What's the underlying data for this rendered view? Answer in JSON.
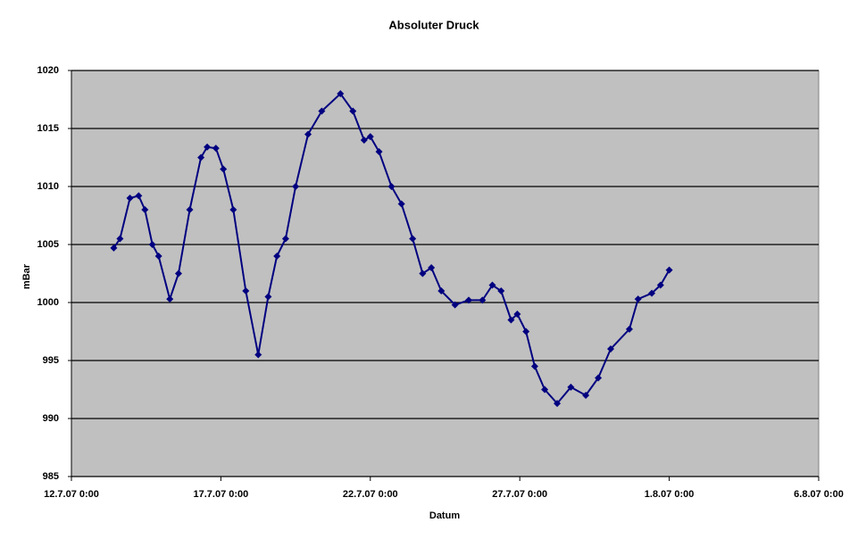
{
  "chart_data": {
    "type": "line",
    "title": "Absoluter Druck",
    "x_label": "Datum",
    "y_label": "mBar",
    "x": [
      "13.7.07 10:00",
      "13.7.07 15:00",
      "13.7.07 23:00",
      "14.7.07 6:00",
      "14.7.07 11:00",
      "14.7.07 17:00",
      "14.7.07 22:00",
      "15.7.07 7:00",
      "15.7.07 14:00",
      "15.7.07 23:00",
      "16.7.07 8:00",
      "16.7.07 13:00",
      "16.7.07 20:00",
      "17.7.07 2:00",
      "17.7.07 10:00",
      "17.7.07 20:00",
      "18.7.07 6:00",
      "18.7.07 14:00",
      "18.7.07 21:00",
      "19.7.07 4:00",
      "19.7.07 12:00",
      "19.7.07 22:00",
      "20.7.07 9:00",
      "21.7.07 0:00",
      "21.7.07 10:00",
      "21.7.07 19:00",
      "22.7.07 0:00",
      "22.7.07 7:00",
      "22.7.07 17:00",
      "23.7.07 1:00",
      "23.7.07 10:00",
      "23.7.07 18:00",
      "24.7.07 1:00",
      "24.7.07 9:00",
      "24.7.07 20:00",
      "25.7.07 7:00",
      "25.7.07 18:00",
      "26.7.07 2:00",
      "26.7.07 9:00",
      "26.7.07 17:00",
      "26.7.07 22:00",
      "27.7.07 5:00",
      "27.7.07 12:00",
      "27.7.07 20:00",
      "28.7.07 6:00",
      "28.7.07 17:00",
      "29.7.07 5:00",
      "29.7.07 15:00",
      "30.7.07 1:00",
      "30.7.07 16:00",
      "30.7.07 23:00",
      "31.7.07 10:00",
      "31.7.07 17:00",
      "1.8.07 0:00"
    ],
    "series": [
      {
        "name": "Absoluter Druck",
        "color": "#000080",
        "values": [
          1004.7,
          1005.5,
          1009,
          1009.2,
          1008,
          1005,
          1004,
          1000.3,
          1002.5,
          1008,
          1012.5,
          1013.4,
          1013.3,
          1011.5,
          1008,
          1001,
          995.5,
          1000.5,
          1004,
          1005.5,
          1010,
          1014.5,
          1016.5,
          1018,
          1016.5,
          1014,
          1014.3,
          1013,
          1010,
          1008.5,
          1005.5,
          1002.5,
          1003,
          1001,
          999.8,
          1000.2,
          1000.2,
          1001.5,
          1001,
          998.5,
          999,
          997.5,
          994.5,
          992.5,
          991.3,
          992.7,
          992,
          993.5,
          996,
          997.7,
          1000.3,
          1000.8,
          1001.5,
          1002.8
        ]
      }
    ],
    "xlim": [
      "12.7.07 0:00",
      "6.8.07 0:00"
    ],
    "xticks": [
      "12.7.07 0:00",
      "17.7.07 0:00",
      "22.7.07 0:00",
      "27.7.07 0:00",
      "1.8.07 0:00",
      "6.8.07 0:00"
    ],
    "ylim": [
      985,
      1020
    ],
    "yticks": [
      985,
      990,
      995,
      1000,
      1005,
      1010,
      1015,
      1020
    ],
    "grid": true,
    "plot_background": "#c0c0c0"
  }
}
